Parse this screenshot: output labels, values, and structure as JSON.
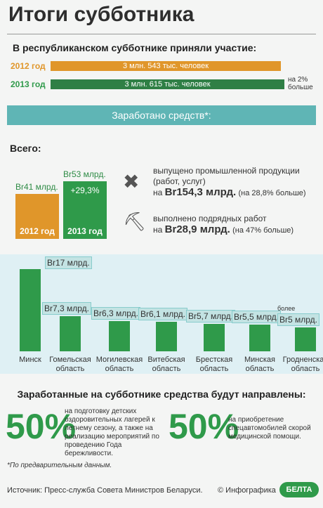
{
  "title": "Итоги субботника",
  "participation": {
    "heading": "В республиканском субботнике приняли участие:",
    "rows": [
      {
        "year": "2012 год",
        "label": "3 млн. 543 тыс. человек"
      },
      {
        "year": "2013 год",
        "label": "3 млн. 615 тыс. человек",
        "note": "на 2% больше"
      }
    ]
  },
  "earned": {
    "heading": "Заработано средств*:",
    "total_label": "Всего:",
    "bars": [
      {
        "year": "2012 год",
        "value": 41,
        "value_label": "Br41 млрд."
      },
      {
        "year": "2013 год",
        "value": 53,
        "value_label": "Br53 млрд.",
        "growth": "+29,3%"
      }
    ],
    "facts": [
      {
        "text": "выпущено промышленной продукции (работ, услуг)",
        "prefix": "на",
        "amount": "Br154,3 млрд.",
        "note": "(на 28,8% больше)"
      },
      {
        "text": "выполнено подрядных работ",
        "prefix": "на",
        "amount": "Br28,9 млрд.",
        "note": "(на 47% больше)"
      }
    ]
  },
  "regions": {
    "categories": [
      "Минск",
      "Гомельская область",
      "Могилевская область",
      "Витебская область",
      "Брестская область",
      "Минская область",
      "Гродненская область"
    ],
    "values": [
      17,
      7.3,
      6.3,
      6.1,
      5.7,
      5.5,
      5
    ],
    "value_labels": [
      "Br17 млрд.",
      "Br7,3 млрд.",
      "Br6,3 млрд.",
      "Br6,1 млрд.",
      "Br5,7 млрд.",
      "Br5,5 млрд.",
      "Br5 млрд."
    ],
    "last_qualifier": "более"
  },
  "destination": {
    "heading": "Заработанные на субботнике средства будут направлены:",
    "items": [
      {
        "percent": "50%",
        "text": "на подготовку детских оздоровительных лагерей к летнему сезону, а также на реализацию мероприятий по проведению Года бережливости."
      },
      {
        "percent": "50%",
        "text": "на приобретение спецавтомобилей скорой медицинской помощи."
      }
    ]
  },
  "footnote": "*По предварительным данным.",
  "source": "Источник: Пресс-служба Совета Министров Беларуси.",
  "credit": "© Инфографика",
  "logo": "БЕЛТА"
}
